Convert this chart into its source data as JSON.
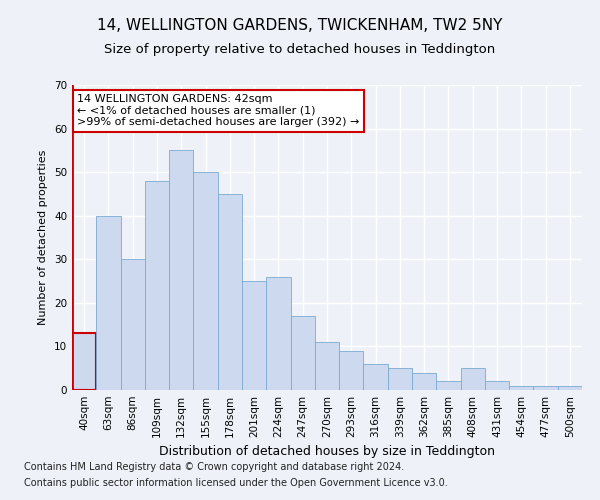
{
  "title1": "14, WELLINGTON GARDENS, TWICKENHAM, TW2 5NY",
  "title2": "Size of property relative to detached houses in Teddington",
  "xlabel": "Distribution of detached houses by size in Teddington",
  "ylabel": "Number of detached properties",
  "categories": [
    "40sqm",
    "63sqm",
    "86sqm",
    "109sqm",
    "132sqm",
    "155sqm",
    "178sqm",
    "201sqm",
    "224sqm",
    "247sqm",
    "270sqm",
    "293sqm",
    "316sqm",
    "339sqm",
    "362sqm",
    "385sqm",
    "408sqm",
    "431sqm",
    "454sqm",
    "477sqm",
    "500sqm"
  ],
  "values": [
    13,
    40,
    30,
    48,
    55,
    50,
    45,
    25,
    26,
    17,
    11,
    9,
    6,
    5,
    4,
    2,
    5,
    2,
    1,
    1,
    1
  ],
  "bar_color": "#ccd9ee",
  "bar_edge_color": "#7aaad4",
  "highlight_bar_edge_color": "#cc0000",
  "highlight_index": 0,
  "annotation_text": "14 WELLINGTON GARDENS: 42sqm\n← <1% of detached houses are smaller (1)\n>99% of semi-detached houses are larger (392) →",
  "annotation_box_color": "#ffffff",
  "annotation_box_edge_color": "#cc0000",
  "ylim": [
    0,
    70
  ],
  "yticks": [
    0,
    10,
    20,
    30,
    40,
    50,
    60,
    70
  ],
  "footer1": "Contains HM Land Registry data © Crown copyright and database right 2024.",
  "footer2": "Contains public sector information licensed under the Open Government Licence v3.0.",
  "bg_color": "#eef2f8",
  "plot_bg_color": "#eef2f8",
  "grid_color": "#ffffff",
  "title1_fontsize": 11,
  "title2_fontsize": 9.5,
  "xlabel_fontsize": 9,
  "ylabel_fontsize": 8,
  "tick_fontsize": 7.5,
  "footer_fontsize": 7,
  "annotation_fontsize": 8
}
